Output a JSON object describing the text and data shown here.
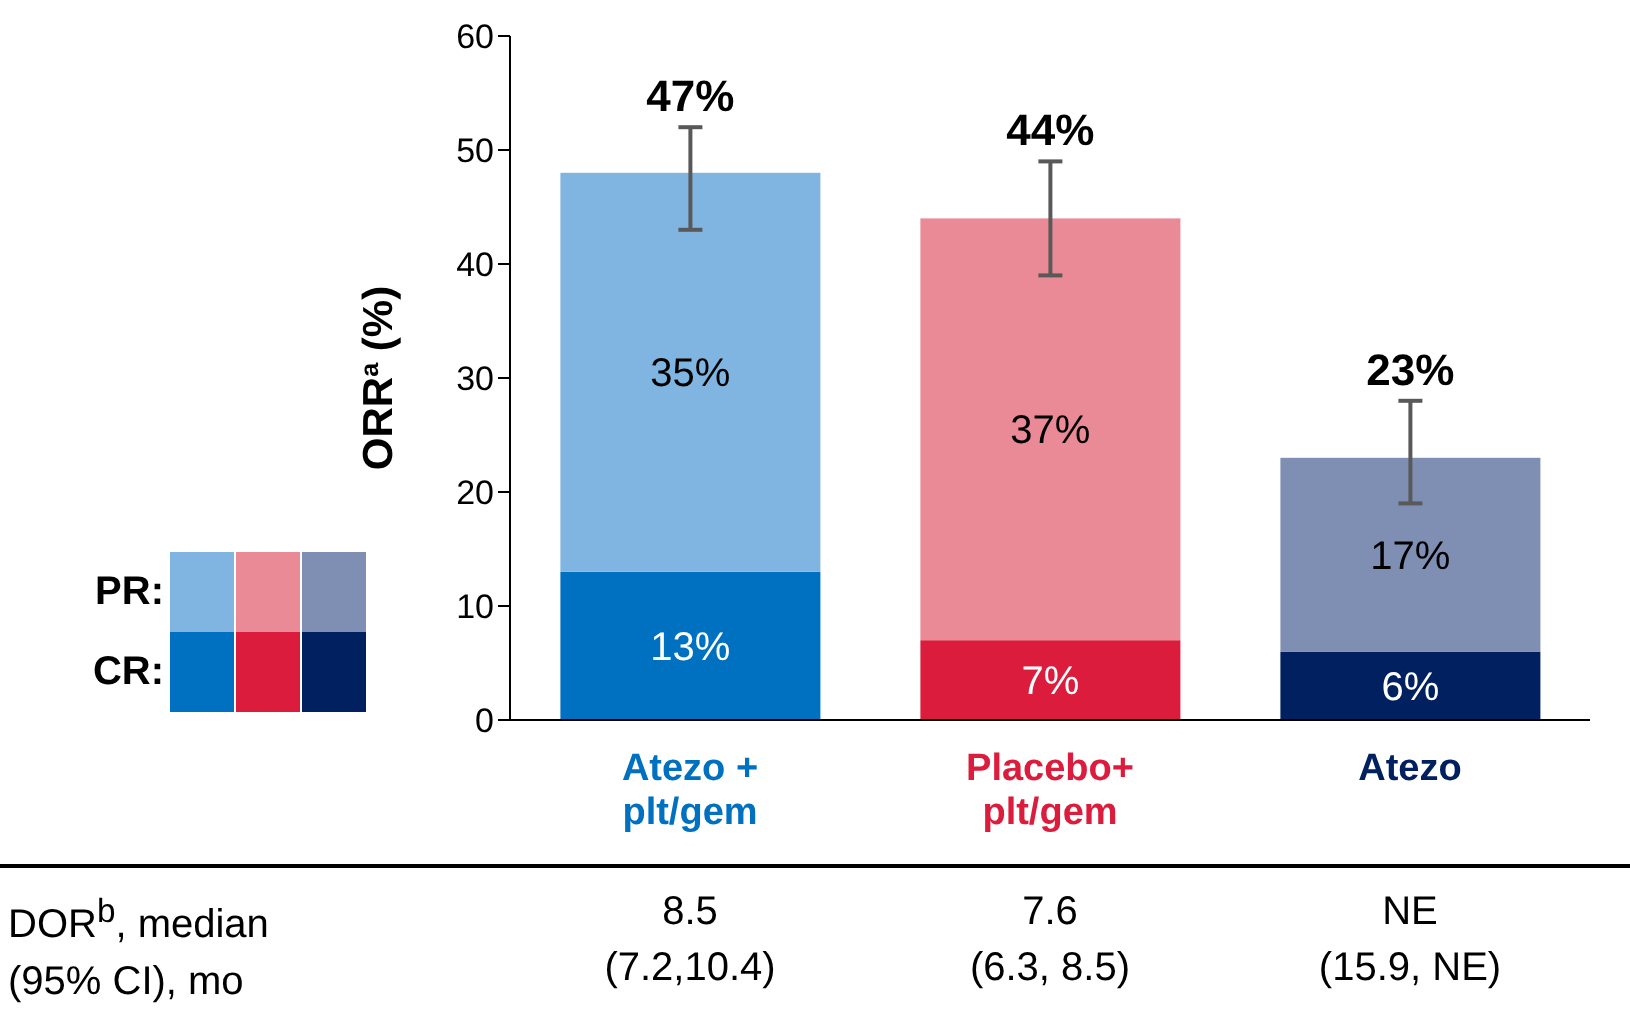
{
  "chart_data": {
    "type": "bar",
    "stacked": true,
    "ylabel": "ORR$^{a}$ (%)",
    "categories": [
      "Atezo + plt/gem",
      "Placebo+ plt/gem",
      "Atezo"
    ],
    "series": [
      {
        "name": "CR:",
        "colors": [
          "#0070c0",
          "#dc1c3c",
          "#002060"
        ],
        "values": [
          13,
          7,
          6
        ],
        "value_labels": [
          "13%",
          "7%",
          "6%"
        ]
      },
      {
        "name": "PR:",
        "colors": [
          "#7fb5e0",
          "#e98a96",
          "#7f8fb4"
        ],
        "values": [
          35,
          37,
          17
        ],
        "value_labels": [
          "35%",
          "37%",
          "17%"
        ],
        "errors": [
          [
            43,
            52
          ],
          [
            39,
            49
          ],
          [
            19,
            28
          ]
        ]
      }
    ],
    "totals": [
      "47%",
      "44%",
      "23%"
    ],
    "ylim": [
      0,
      60
    ],
    "yticks": [
      0,
      10,
      20,
      30,
      40,
      50,
      60
    ],
    "grid": false,
    "legend": "left",
    "annotations": [
      "DOR$^{b}$, median",
      "(95% CI), mo",
      "8.5",
      "(7.2,10.4)",
      "7.6",
      "(6.3, 8.5)",
      "NE",
      "(15.9, NE)"
    ]
  }
}
